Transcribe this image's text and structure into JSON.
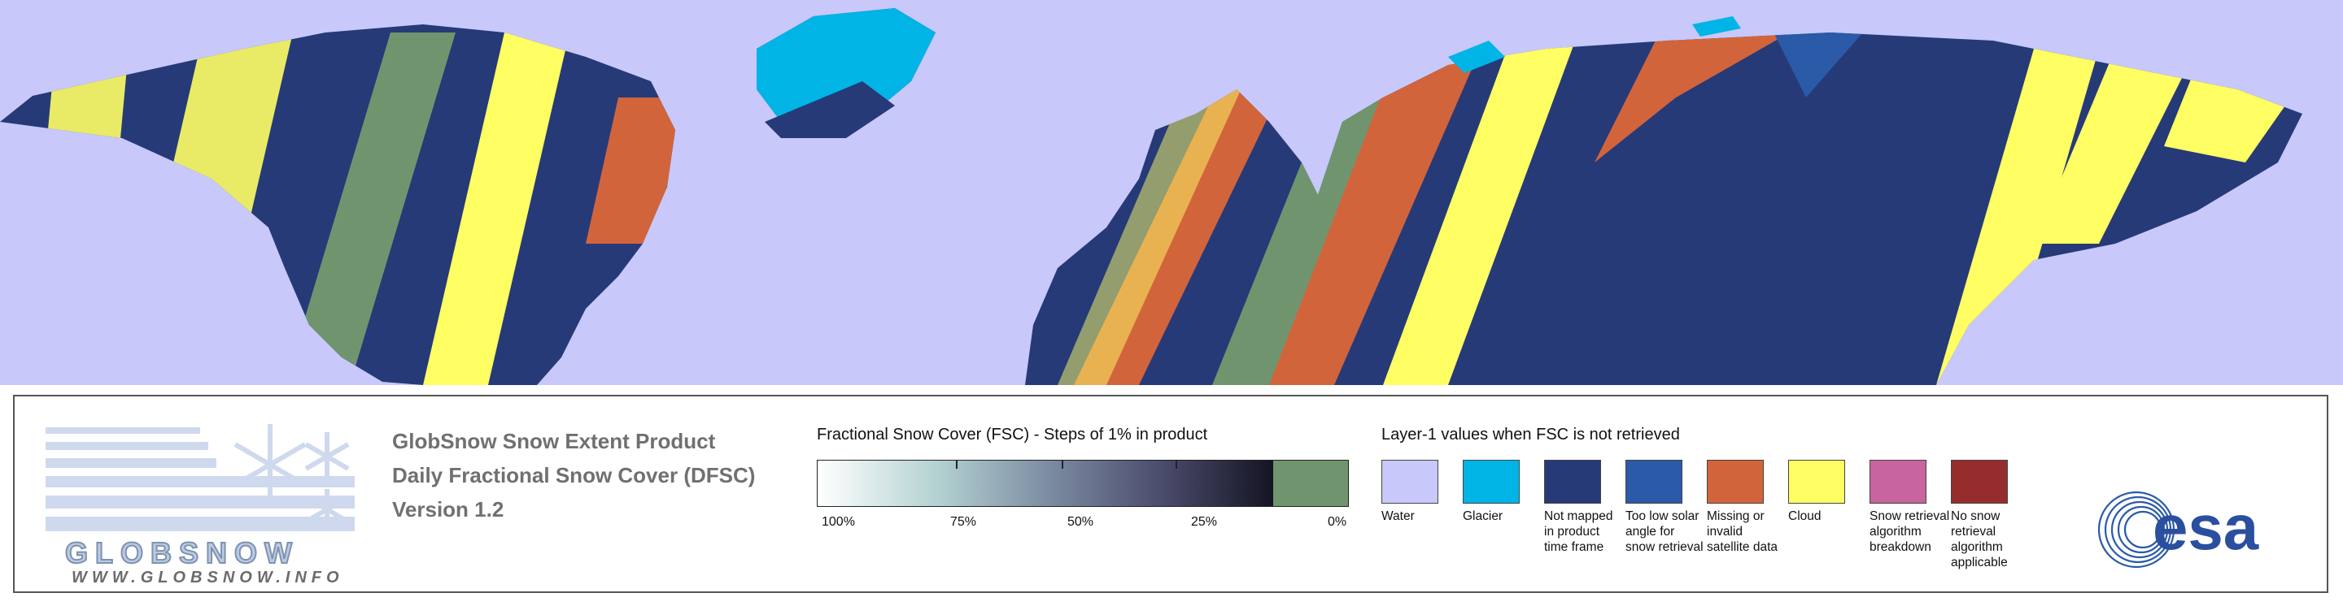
{
  "legend": {
    "logo": {
      "word": "GLOBSNOW",
      "url": "WWW.GLOBSNOW.INFO"
    },
    "product_lines": [
      "GlobSnow Snow Extent Product",
      "Daily Fractional Snow Cover (DFSC)",
      "Version 1.2"
    ],
    "fsc": {
      "title": "Fractional Snow Cover (FSC) - Steps of 1% in product",
      "ticks": [
        "100%",
        "75%",
        "50%",
        "25%",
        "0%"
      ]
    },
    "layer1": {
      "title": "Layer-1 values when FSC is not retrieved",
      "items": [
        {
          "label": "Water",
          "color": "#c8c8fa"
        },
        {
          "label": "Glacier",
          "color": "#00b4e6"
        },
        {
          "label": "Not mapped in product time frame",
          "color": "#263a78"
        },
        {
          "label": "Too low solar angle for snow retrieval",
          "color": "#2a5aa8"
        },
        {
          "label": "Missing or invalid satellite data",
          "color": "#d2643c"
        },
        {
          "label": "Cloud",
          "color": "#ffff64"
        },
        {
          "label": "Snow retrieval algorithm breakdown",
          "color": "#c8649e"
        },
        {
          "label": "No snow retrieval algorithm applicable",
          "color": "#962d2d"
        }
      ]
    },
    "esa_logo": "esa"
  },
  "map": {
    "water_color": "#c8c8fa",
    "land_color": "#263a78",
    "snow_color": "#ffffff"
  }
}
